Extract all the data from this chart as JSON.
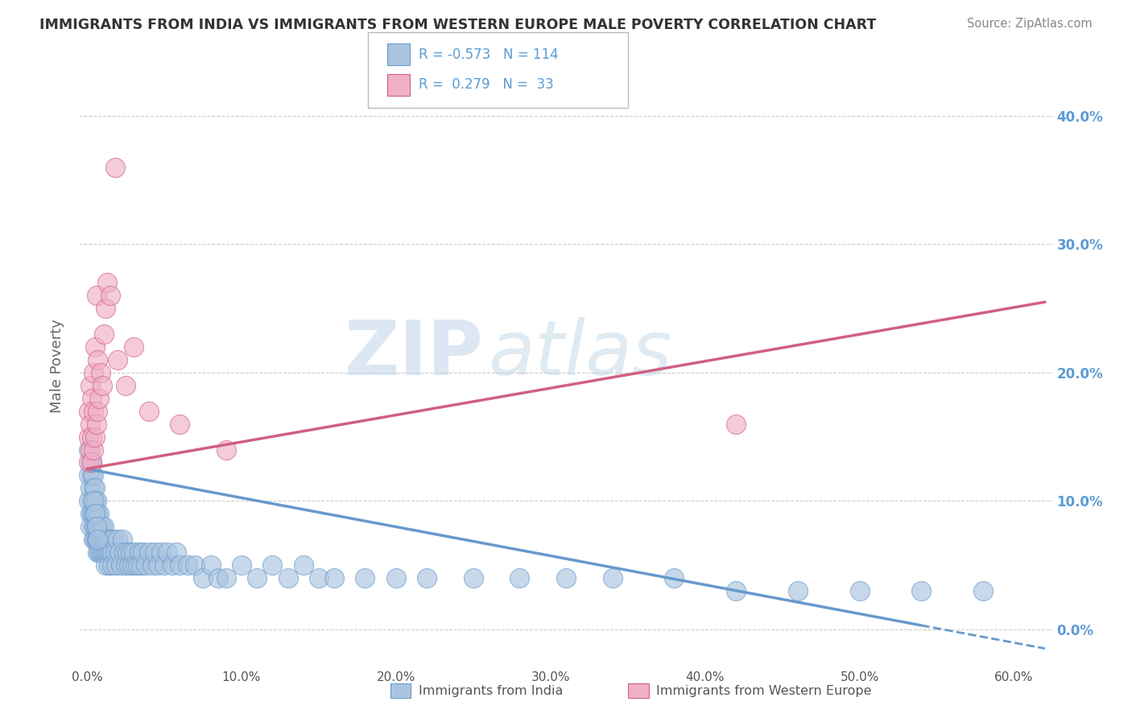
{
  "title": "IMMIGRANTS FROM INDIA VS IMMIGRANTS FROM WESTERN EUROPE MALE POVERTY CORRELATION CHART",
  "source": "Source: ZipAtlas.com",
  "ylabel": "Male Poverty",
  "xlim": [
    -0.005,
    0.625
  ],
  "ylim": [
    -0.03,
    0.44
  ],
  "india_color": "#aac4e0",
  "india_color_edge": "#6699cc",
  "western_color": "#f0b0c8",
  "western_color_edge": "#d06080",
  "india_R": -0.573,
  "india_N": 114,
  "western_R": 0.279,
  "western_N": 33,
  "legend_label_india": "Immigrants from India",
  "legend_label_western": "Immigrants from Western Europe",
  "watermark_zip": "ZIP",
  "watermark_atlas": "atlas",
  "background_color": "#ffffff",
  "grid_color": "#cccccc",
  "title_color": "#333333",
  "axis_label_color": "#5b9bd5",
  "india_scatter_x": [
    0.001,
    0.001,
    0.001,
    0.002,
    0.002,
    0.002,
    0.002,
    0.003,
    0.003,
    0.003,
    0.003,
    0.004,
    0.004,
    0.004,
    0.004,
    0.004,
    0.005,
    0.005,
    0.005,
    0.005,
    0.005,
    0.006,
    0.006,
    0.006,
    0.006,
    0.007,
    0.007,
    0.007,
    0.007,
    0.008,
    0.008,
    0.008,
    0.008,
    0.009,
    0.009,
    0.009,
    0.01,
    0.01,
    0.01,
    0.011,
    0.011,
    0.011,
    0.012,
    0.012,
    0.012,
    0.013,
    0.013,
    0.014,
    0.014,
    0.015,
    0.015,
    0.016,
    0.016,
    0.017,
    0.018,
    0.019,
    0.02,
    0.021,
    0.022,
    0.023,
    0.024,
    0.025,
    0.026,
    0.027,
    0.028,
    0.029,
    0.03,
    0.031,
    0.033,
    0.034,
    0.035,
    0.036,
    0.038,
    0.04,
    0.042,
    0.044,
    0.046,
    0.048,
    0.05,
    0.052,
    0.055,
    0.058,
    0.06,
    0.065,
    0.07,
    0.075,
    0.08,
    0.085,
    0.09,
    0.1,
    0.11,
    0.12,
    0.13,
    0.14,
    0.15,
    0.16,
    0.18,
    0.2,
    0.22,
    0.25,
    0.28,
    0.31,
    0.34,
    0.38,
    0.42,
    0.46,
    0.5,
    0.54,
    0.58,
    0.003,
    0.004,
    0.005,
    0.006,
    0.007
  ],
  "india_scatter_y": [
    0.14,
    0.12,
    0.1,
    0.13,
    0.11,
    0.09,
    0.08,
    0.12,
    0.1,
    0.09,
    0.13,
    0.11,
    0.09,
    0.08,
    0.12,
    0.07,
    0.1,
    0.09,
    0.08,
    0.07,
    0.11,
    0.09,
    0.08,
    0.07,
    0.1,
    0.08,
    0.07,
    0.06,
    0.09,
    0.08,
    0.07,
    0.06,
    0.09,
    0.07,
    0.06,
    0.08,
    0.07,
    0.06,
    0.08,
    0.07,
    0.06,
    0.08,
    0.06,
    0.07,
    0.05,
    0.06,
    0.07,
    0.06,
    0.05,
    0.07,
    0.06,
    0.06,
    0.05,
    0.07,
    0.06,
    0.05,
    0.07,
    0.06,
    0.05,
    0.07,
    0.06,
    0.05,
    0.06,
    0.05,
    0.06,
    0.05,
    0.06,
    0.05,
    0.05,
    0.06,
    0.05,
    0.06,
    0.05,
    0.06,
    0.05,
    0.06,
    0.05,
    0.06,
    0.05,
    0.06,
    0.05,
    0.06,
    0.05,
    0.05,
    0.05,
    0.04,
    0.05,
    0.04,
    0.04,
    0.05,
    0.04,
    0.05,
    0.04,
    0.05,
    0.04,
    0.04,
    0.04,
    0.04,
    0.04,
    0.04,
    0.04,
    0.04,
    0.04,
    0.04,
    0.03,
    0.03,
    0.03,
    0.03,
    0.03,
    0.13,
    0.1,
    0.09,
    0.08,
    0.07
  ],
  "western_scatter_x": [
    0.001,
    0.001,
    0.001,
    0.002,
    0.002,
    0.002,
    0.003,
    0.003,
    0.003,
    0.004,
    0.004,
    0.004,
    0.005,
    0.005,
    0.006,
    0.006,
    0.007,
    0.007,
    0.008,
    0.009,
    0.01,
    0.011,
    0.012,
    0.013,
    0.015,
    0.018,
    0.02,
    0.025,
    0.03,
    0.04,
    0.06,
    0.09,
    0.42
  ],
  "western_scatter_y": [
    0.13,
    0.15,
    0.17,
    0.14,
    0.16,
    0.19,
    0.13,
    0.15,
    0.18,
    0.14,
    0.17,
    0.2,
    0.15,
    0.22,
    0.16,
    0.26,
    0.17,
    0.21,
    0.18,
    0.2,
    0.19,
    0.23,
    0.25,
    0.27,
    0.26,
    0.36,
    0.21,
    0.19,
    0.22,
    0.17,
    0.16,
    0.14,
    0.16
  ],
  "india_trend_x0": 0.0,
  "india_trend_y0": 0.125,
  "india_trend_x1": 0.54,
  "india_trend_y1": 0.003,
  "india_trend_dash_x0": 0.54,
  "india_trend_dash_y0": 0.003,
  "india_trend_dash_x1": 0.62,
  "india_trend_dash_y1": -0.015,
  "western_trend_x0": 0.0,
  "western_trend_y0": 0.125,
  "western_trend_x1": 0.62,
  "western_trend_y1": 0.255,
  "xtick_vals": [
    0.0,
    0.1,
    0.2,
    0.3,
    0.4,
    0.5,
    0.6
  ],
  "ytick_vals": [
    0.0,
    0.1,
    0.2,
    0.3,
    0.4
  ]
}
